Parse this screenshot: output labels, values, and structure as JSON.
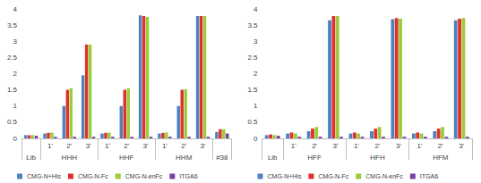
{
  "chart_data": [
    {
      "type": "bar",
      "categories": [
        null,
        "1'",
        "2'",
        "3'",
        "1'",
        "2'",
        "3'",
        "1'",
        "2'",
        "3'",
        null
      ],
      "category_groups": [
        {
          "label": "Lib",
          "count": 1
        },
        {
          "label": "HHH",
          "count": 3
        },
        {
          "label": "HHF",
          "count": 3
        },
        {
          "label": "HHM",
          "count": 3
        },
        {
          "label": "#38",
          "count": 1
        }
      ],
      "series": [
        {
          "name": "CMG-N+His",
          "color": "#4f81bd",
          "values": [
            0.1,
            0.15,
            1.0,
            1.95,
            0.15,
            1.0,
            3.8,
            0.15,
            1.0,
            3.78,
            0.2
          ]
        },
        {
          "name": "CMG-N-Fc",
          "color": "#e0302a",
          "values": [
            0.1,
            0.17,
            1.5,
            2.9,
            0.17,
            1.5,
            3.78,
            0.17,
            1.5,
            3.78,
            0.28
          ]
        },
        {
          "name": "CMG-N-enFc",
          "color": "#9bcc3c",
          "values": [
            0.1,
            0.18,
            1.55,
            2.9,
            0.18,
            1.55,
            3.75,
            0.18,
            1.52,
            3.78,
            0.28
          ]
        },
        {
          "name": "ITGA6",
          "color": "#7b3fa8",
          "values": [
            0.08,
            0.05,
            0.05,
            0.05,
            0.05,
            0.05,
            0.05,
            0.05,
            0.05,
            0.05,
            0.15
          ]
        }
      ],
      "ylim": [
        0,
        4
      ],
      "yticks": [
        0,
        0.5,
        1,
        1.5,
        2,
        2.5,
        3,
        3.5,
        4
      ],
      "grid": false,
      "legend": "bottom"
    },
    {
      "type": "bar",
      "categories": [
        null,
        "1'",
        "2'",
        "3'",
        "1'",
        "2'",
        "3'",
        "1'",
        "2'",
        "3'"
      ],
      "category_groups": [
        {
          "label": "Lib",
          "count": 1
        },
        {
          "label": "HFF",
          "count": 3
        },
        {
          "label": "HFH",
          "count": 3
        },
        {
          "label": "HFM",
          "count": 3
        }
      ],
      "series": [
        {
          "name": "CMG-N+His",
          "color": "#4f81bd",
          "values": [
            0.1,
            0.15,
            0.22,
            3.65,
            0.15,
            0.22,
            3.68,
            0.15,
            0.22,
            3.65
          ]
        },
        {
          "name": "CMG-N-Fc",
          "color": "#e0302a",
          "values": [
            0.12,
            0.18,
            0.3,
            3.78,
            0.18,
            0.3,
            3.72,
            0.18,
            0.3,
            3.7
          ]
        },
        {
          "name": "CMG-N-enFc",
          "color": "#9bcc3c",
          "values": [
            0.1,
            0.15,
            0.35,
            3.78,
            0.15,
            0.35,
            3.7,
            0.15,
            0.35,
            3.72
          ]
        },
        {
          "name": "ITGA6",
          "color": "#7b3fa8",
          "values": [
            0.08,
            0.05,
            0.05,
            0.05,
            0.05,
            0.05,
            0.05,
            0.05,
            0.05,
            0.05
          ]
        }
      ],
      "ylim": [
        0,
        4
      ],
      "yticks": [
        0,
        0.5,
        1,
        1.5,
        2,
        2.5,
        3,
        3.5,
        4
      ],
      "grid": false,
      "legend": "bottom"
    }
  ]
}
